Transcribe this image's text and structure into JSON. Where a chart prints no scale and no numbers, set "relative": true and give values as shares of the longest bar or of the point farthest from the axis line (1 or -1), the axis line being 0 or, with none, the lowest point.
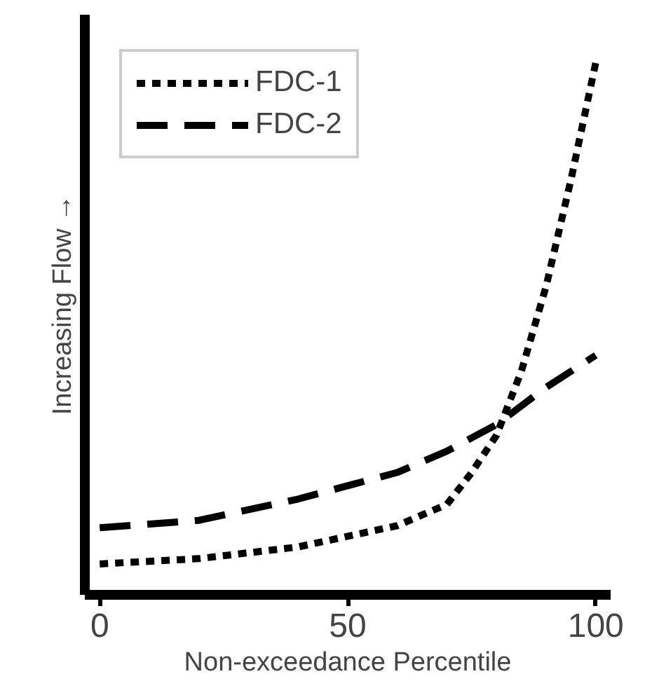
{
  "chart_data": {
    "type": "line",
    "relative": true,
    "xlabel": "Non-exceedance Percentile",
    "ylabel": "Increasing Flow →",
    "xlim": [
      -3,
      103
    ],
    "xticks": [
      0,
      50,
      100
    ],
    "legend": "top left",
    "grid": false,
    "series": [
      {
        "name": "FDC-1",
        "color": "#000000",
        "line_style": "dotted",
        "x": [
          0,
          20,
          40,
          60,
          70,
          75,
          80,
          85,
          90,
          95,
          100
        ],
        "values": [
          0.058,
          0.068,
          0.09,
          0.13,
          0.17,
          0.23,
          0.3,
          0.42,
          0.58,
          0.78,
          1
        ]
      },
      {
        "name": "FDC-2",
        "color": "#000000",
        "line_style": "dashed",
        "x": [
          0,
          20,
          40,
          60,
          70,
          80,
          90,
          100
        ],
        "values": [
          0.126,
          0.14,
          0.18,
          0.23,
          0.27,
          0.32,
          0.39,
          0.45
        ]
      }
    ]
  }
}
